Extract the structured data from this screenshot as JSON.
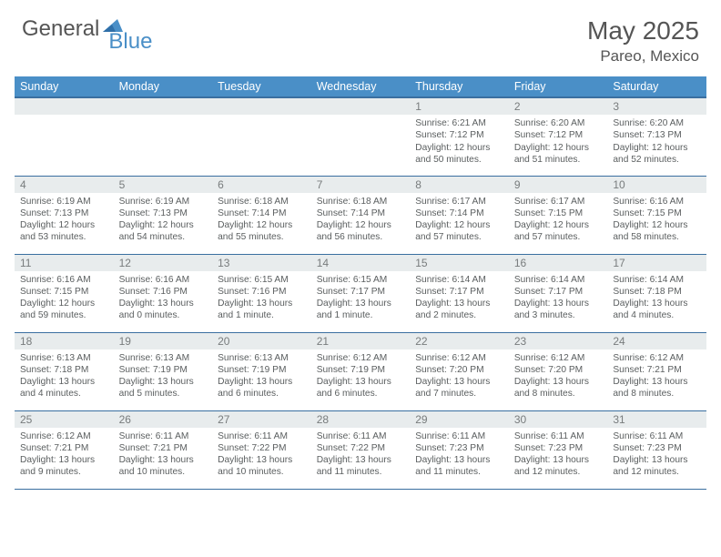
{
  "brand": {
    "text1": "General",
    "text2": "Blue"
  },
  "title": {
    "month": "May 2025",
    "location": "Pareo, Mexico"
  },
  "colors": {
    "header_bg": "#4a8fc7",
    "border": "#3a6fa0",
    "daynum_bg": "#e8eced",
    "daynum_text": "#787c7d",
    "body_text": "#5a5e5f",
    "page_bg": "#ffffff"
  },
  "weekdays": [
    "Sunday",
    "Monday",
    "Tuesday",
    "Wednesday",
    "Thursday",
    "Friday",
    "Saturday"
  ],
  "weeks": [
    [
      null,
      null,
      null,
      null,
      {
        "d": "1",
        "sr": "6:21 AM",
        "ss": "7:12 PM",
        "dl": "12 hours and 50 minutes."
      },
      {
        "d": "2",
        "sr": "6:20 AM",
        "ss": "7:12 PM",
        "dl": "12 hours and 51 minutes."
      },
      {
        "d": "3",
        "sr": "6:20 AM",
        "ss": "7:13 PM",
        "dl": "12 hours and 52 minutes."
      }
    ],
    [
      {
        "d": "4",
        "sr": "6:19 AM",
        "ss": "7:13 PM",
        "dl": "12 hours and 53 minutes."
      },
      {
        "d": "5",
        "sr": "6:19 AM",
        "ss": "7:13 PM",
        "dl": "12 hours and 54 minutes."
      },
      {
        "d": "6",
        "sr": "6:18 AM",
        "ss": "7:14 PM",
        "dl": "12 hours and 55 minutes."
      },
      {
        "d": "7",
        "sr": "6:18 AM",
        "ss": "7:14 PM",
        "dl": "12 hours and 56 minutes."
      },
      {
        "d": "8",
        "sr": "6:17 AM",
        "ss": "7:14 PM",
        "dl": "12 hours and 57 minutes."
      },
      {
        "d": "9",
        "sr": "6:17 AM",
        "ss": "7:15 PM",
        "dl": "12 hours and 57 minutes."
      },
      {
        "d": "10",
        "sr": "6:16 AM",
        "ss": "7:15 PM",
        "dl": "12 hours and 58 minutes."
      }
    ],
    [
      {
        "d": "11",
        "sr": "6:16 AM",
        "ss": "7:15 PM",
        "dl": "12 hours and 59 minutes."
      },
      {
        "d": "12",
        "sr": "6:16 AM",
        "ss": "7:16 PM",
        "dl": "13 hours and 0 minutes."
      },
      {
        "d": "13",
        "sr": "6:15 AM",
        "ss": "7:16 PM",
        "dl": "13 hours and 1 minute."
      },
      {
        "d": "14",
        "sr": "6:15 AM",
        "ss": "7:17 PM",
        "dl": "13 hours and 1 minute."
      },
      {
        "d": "15",
        "sr": "6:14 AM",
        "ss": "7:17 PM",
        "dl": "13 hours and 2 minutes."
      },
      {
        "d": "16",
        "sr": "6:14 AM",
        "ss": "7:17 PM",
        "dl": "13 hours and 3 minutes."
      },
      {
        "d": "17",
        "sr": "6:14 AM",
        "ss": "7:18 PM",
        "dl": "13 hours and 4 minutes."
      }
    ],
    [
      {
        "d": "18",
        "sr": "6:13 AM",
        "ss": "7:18 PM",
        "dl": "13 hours and 4 minutes."
      },
      {
        "d": "19",
        "sr": "6:13 AM",
        "ss": "7:19 PM",
        "dl": "13 hours and 5 minutes."
      },
      {
        "d": "20",
        "sr": "6:13 AM",
        "ss": "7:19 PM",
        "dl": "13 hours and 6 minutes."
      },
      {
        "d": "21",
        "sr": "6:12 AM",
        "ss": "7:19 PM",
        "dl": "13 hours and 6 minutes."
      },
      {
        "d": "22",
        "sr": "6:12 AM",
        "ss": "7:20 PM",
        "dl": "13 hours and 7 minutes."
      },
      {
        "d": "23",
        "sr": "6:12 AM",
        "ss": "7:20 PM",
        "dl": "13 hours and 8 minutes."
      },
      {
        "d": "24",
        "sr": "6:12 AM",
        "ss": "7:21 PM",
        "dl": "13 hours and 8 minutes."
      }
    ],
    [
      {
        "d": "25",
        "sr": "6:12 AM",
        "ss": "7:21 PM",
        "dl": "13 hours and 9 minutes."
      },
      {
        "d": "26",
        "sr": "6:11 AM",
        "ss": "7:21 PM",
        "dl": "13 hours and 10 minutes."
      },
      {
        "d": "27",
        "sr": "6:11 AM",
        "ss": "7:22 PM",
        "dl": "13 hours and 10 minutes."
      },
      {
        "d": "28",
        "sr": "6:11 AM",
        "ss": "7:22 PM",
        "dl": "13 hours and 11 minutes."
      },
      {
        "d": "29",
        "sr": "6:11 AM",
        "ss": "7:23 PM",
        "dl": "13 hours and 11 minutes."
      },
      {
        "d": "30",
        "sr": "6:11 AM",
        "ss": "7:23 PM",
        "dl": "13 hours and 12 minutes."
      },
      {
        "d": "31",
        "sr": "6:11 AM",
        "ss": "7:23 PM",
        "dl": "13 hours and 12 minutes."
      }
    ]
  ],
  "labels": {
    "sunrise": "Sunrise:",
    "sunset": "Sunset:",
    "daylight": "Daylight:"
  }
}
